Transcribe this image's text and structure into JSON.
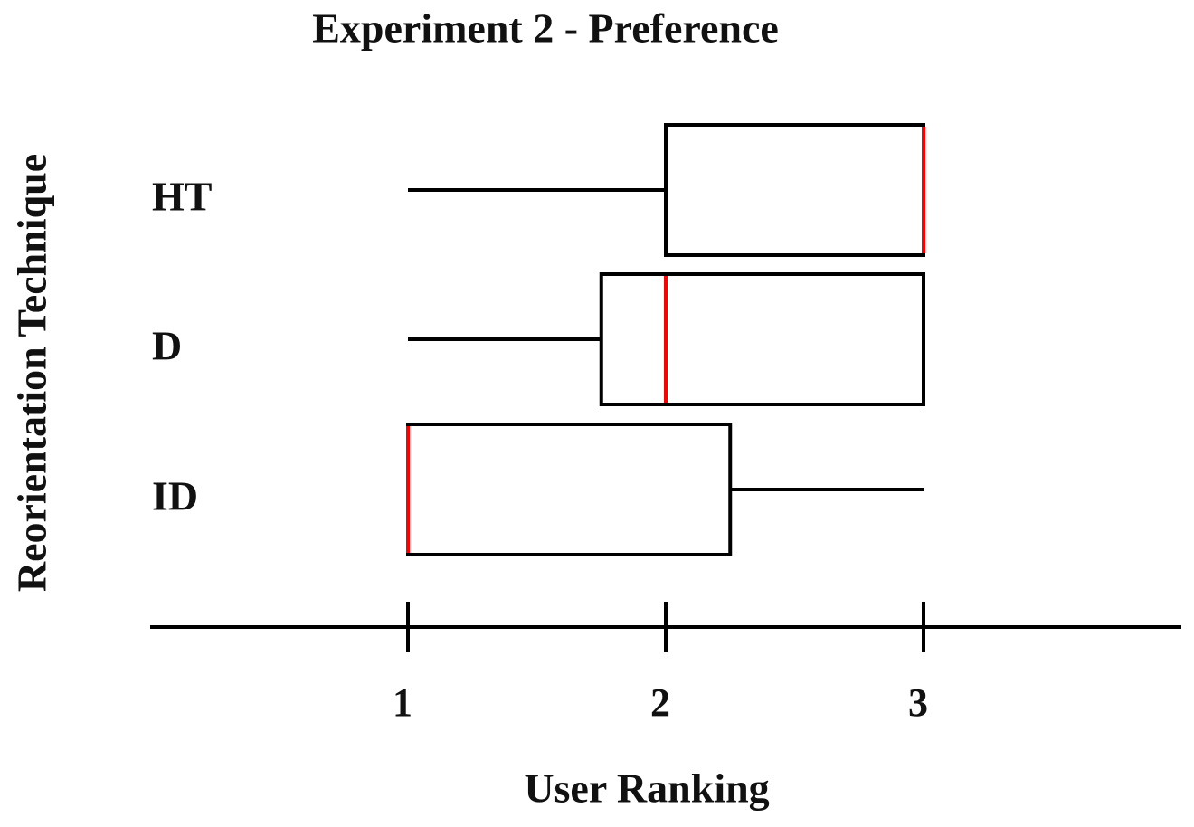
{
  "chart_data": {
    "type": "boxplot",
    "orientation": "horizontal",
    "title": "Experiment 2 - Preference",
    "xlabel": "User Ranking",
    "ylabel": "Reorientation Technique",
    "categories": [
      "HT",
      "D",
      "ID"
    ],
    "boxes": [
      {
        "min": 1,
        "q1": 2,
        "median": 3,
        "q3": 3,
        "max": 3
      },
      {
        "min": 1,
        "q1": 1.75,
        "median": 2,
        "q3": 3,
        "max": 3
      },
      {
        "min": 1,
        "q1": 1,
        "median": 1,
        "q3": 2.25,
        "max": 3
      }
    ],
    "box_color": "#000000",
    "median_color": "#ff0000",
    "xlim": [
      0,
      4
    ],
    "xticks": [
      1,
      2,
      3
    ],
    "grid": false
  }
}
